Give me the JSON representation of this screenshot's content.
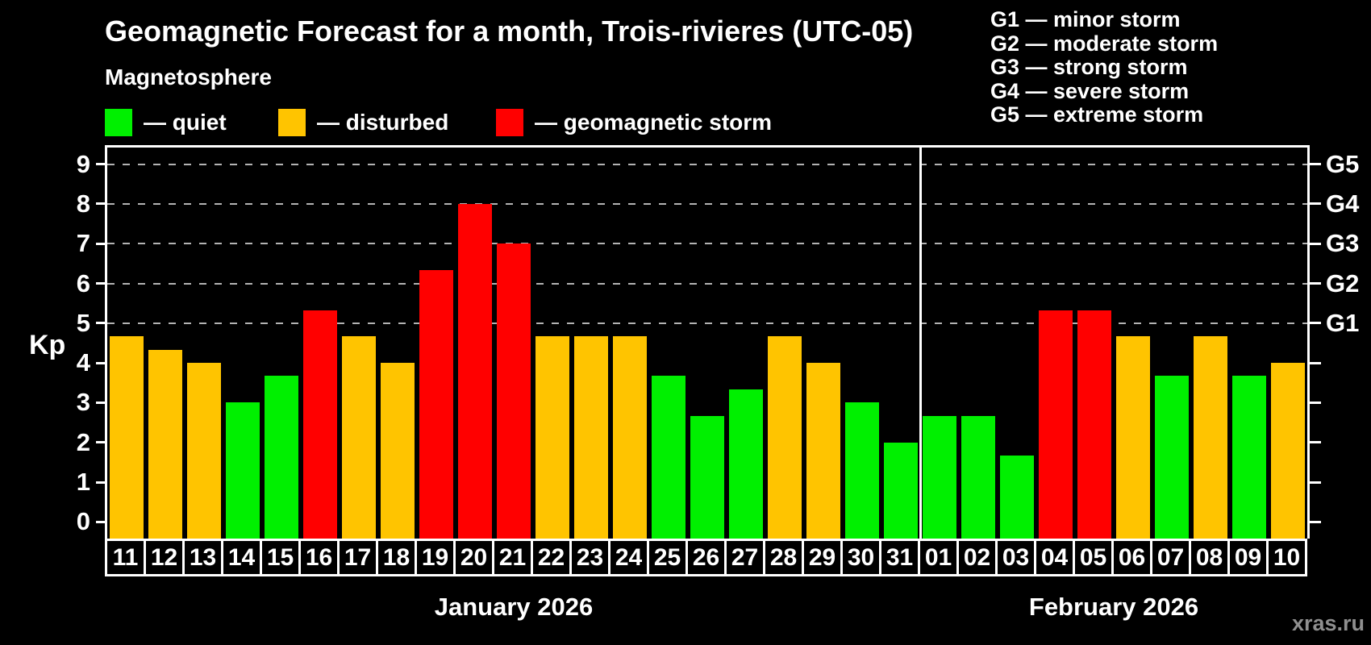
{
  "title": "Geomagnetic Forecast for a month, Trois-rivieres (UTC-05)",
  "subtitle": "Magnetosphere",
  "legend": {
    "quiet_label": "— quiet",
    "disturbed_label": "— disturbed",
    "storm_label": "— geomagnetic storm"
  },
  "g_legend": [
    "G1 — minor storm",
    "G2 — moderate storm",
    "G3 — strong storm",
    "G4 — severe storm",
    "G5 — extreme storm"
  ],
  "watermark": "xras.ru",
  "colors": {
    "quiet": "#00f000",
    "disturbed": "#ffc400",
    "storm": "#ff0000",
    "gridline": "#b3b3b3",
    "axis": "#ffffff",
    "background": "#000000",
    "watermark": "#8f8f8f"
  },
  "chart_data": {
    "type": "bar",
    "title": "Geomagnetic Forecast for a month, Trois-rivieres (UTC-05)",
    "xlabel": "",
    "ylabel": "Kp",
    "ylim": [
      0,
      9
    ],
    "grid": "dashed horizontal at Kp 5-9 only",
    "legend_position": "top-left swatches; G-scale list top-right",
    "kp_ticks": [
      0,
      1,
      2,
      3,
      4,
      5,
      6,
      7,
      8,
      9
    ],
    "gridlines_kp": [
      5,
      6,
      7,
      8,
      9
    ],
    "g_labels": [
      {
        "kp": 5,
        "label": "G1"
      },
      {
        "kp": 6,
        "label": "G2"
      },
      {
        "kp": 7,
        "label": "G3"
      },
      {
        "kp": 8,
        "label": "G4"
      },
      {
        "kp": 9,
        "label": "G5"
      }
    ],
    "months": [
      {
        "label": "January 2026",
        "count": 21
      },
      {
        "label": "February 2026",
        "count": 10
      }
    ],
    "categories": [
      "11",
      "12",
      "13",
      "14",
      "15",
      "16",
      "17",
      "18",
      "19",
      "20",
      "21",
      "22",
      "23",
      "24",
      "25",
      "26",
      "27",
      "28",
      "29",
      "30",
      "31",
      "01",
      "02",
      "03",
      "04",
      "05",
      "06",
      "07",
      "08",
      "09",
      "10"
    ],
    "values": [
      4.67,
      4.33,
      4.0,
      3.0,
      3.67,
      5.33,
      4.67,
      4.0,
      6.33,
      8.0,
      7.0,
      4.67,
      4.67,
      4.67,
      3.67,
      2.67,
      3.33,
      4.67,
      4.0,
      3.0,
      2.0,
      2.67,
      2.67,
      1.67,
      5.33,
      5.33,
      4.67,
      3.67,
      4.67,
      3.67,
      4.0
    ],
    "statuses": [
      "disturbed",
      "disturbed",
      "disturbed",
      "quiet",
      "quiet",
      "storm",
      "disturbed",
      "disturbed",
      "storm",
      "storm",
      "storm",
      "disturbed",
      "disturbed",
      "disturbed",
      "quiet",
      "quiet",
      "quiet",
      "disturbed",
      "disturbed",
      "quiet",
      "quiet",
      "quiet",
      "quiet",
      "quiet",
      "storm",
      "storm",
      "disturbed",
      "quiet",
      "disturbed",
      "quiet",
      "disturbed"
    ]
  }
}
